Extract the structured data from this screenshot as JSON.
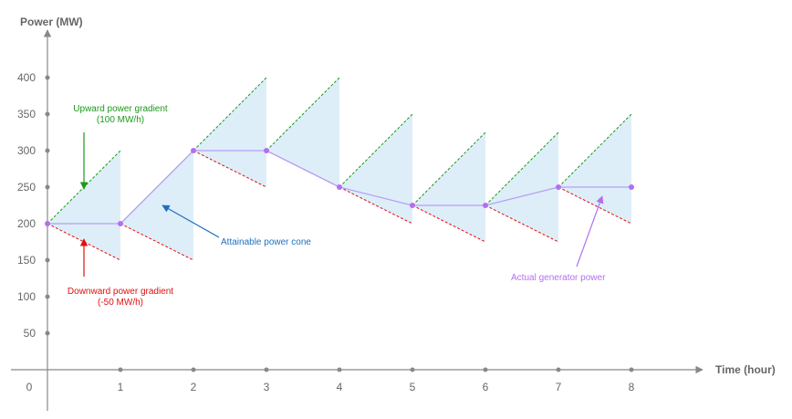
{
  "chart_data": {
    "type": "line",
    "title": "",
    "xlabel": "Time (hour)",
    "ylabel": "Power (MW)",
    "xlim": [
      0,
      8
    ],
    "ylim": [
      0,
      400
    ],
    "x_ticks": [
      0,
      1,
      2,
      3,
      4,
      5,
      6,
      7,
      8
    ],
    "y_ticks": [
      50,
      100,
      150,
      200,
      250,
      300,
      350,
      400
    ],
    "upward_gradient_mw_per_h": 100,
    "downward_gradient_mw_per_h": -50,
    "series": [
      {
        "x": [
          0,
          1,
          2,
          3,
          4,
          5,
          6,
          7,
          8
        ],
        "values": [
          200,
          200,
          300,
          300,
          250,
          225,
          225,
          250,
          250
        ]
      }
    ],
    "annotations": [
      {
        "id": "upward",
        "lines": [
          "Upward power gradient",
          "(100 MW/h)"
        ],
        "color": "#1a9a1a"
      },
      {
        "id": "downward",
        "lines": [
          "Downward power gradient",
          "(-50 MW/h)"
        ],
        "color": "#e01010"
      },
      {
        "id": "cone",
        "lines": [
          "Attainable power cone"
        ],
        "color": "#1f6fbf"
      },
      {
        "id": "actual",
        "lines": [
          "Actual generator power"
        ],
        "color": "#b36ff0"
      }
    ],
    "colors": {
      "axis": "#888888",
      "cone_fill": "#ddeef9",
      "upward": "#1a9a1a",
      "downward": "#e01010",
      "actual_line": "#b89ef5",
      "actual_point": "#b36ff0",
      "cone_label": "#1f6fbf"
    }
  }
}
